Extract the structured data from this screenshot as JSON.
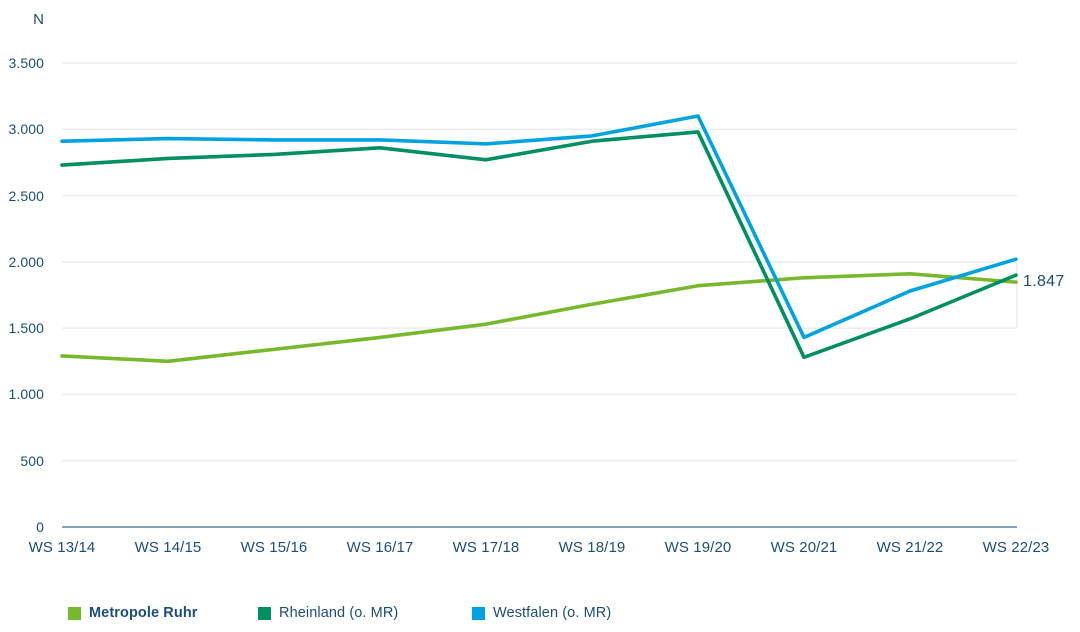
{
  "colors": {
    "text": "#1d4e78",
    "grid": "#e8edf1",
    "axis": "#87a2b6",
    "background": "#ffffff"
  },
  "chart_data": {
    "type": "line",
    "title": "",
    "ylabel": "N",
    "xlabel": "",
    "categories": [
      "WS 13/14",
      "WS 14/15",
      "WS 15/16",
      "WS 16/17",
      "WS 17/18",
      "WS 18/19",
      "WS 19/20",
      "WS 20/21",
      "WS 21/22",
      "WS 22/23"
    ],
    "series": [
      {
        "name": "Metropole Ruhr",
        "color": "#78b82d",
        "legend_bold": true,
        "values": [
          1290,
          1250,
          1340,
          1430,
          1530,
          1680,
          1820,
          1880,
          1910,
          1847
        ]
      },
      {
        "name": "Rheinland (o. MR)",
        "color": "#008e63",
        "legend_bold": false,
        "values": [
          2730,
          2780,
          2810,
          2860,
          2770,
          2910,
          2980,
          1280,
          1570,
          1900
        ]
      },
      {
        "name": "Westfalen (o. MR)",
        "color": "#00a3e0",
        "legend_bold": false,
        "values": [
          2910,
          2930,
          2920,
          2920,
          2890,
          2950,
          3100,
          1430,
          1780,
          2020
        ]
      }
    ],
    "ylim": [
      0,
      3500
    ],
    "ytick_step": 500,
    "ytick_labels": [
      "0",
      "500",
      "1.000",
      "1.500",
      "2.000",
      "2.500",
      "3.000",
      "3.500"
    ],
    "grid": "horizontal",
    "legend_position": "bottom",
    "end_label": {
      "series": "Metropole Ruhr",
      "text": "1.847",
      "value": 1847
    }
  }
}
